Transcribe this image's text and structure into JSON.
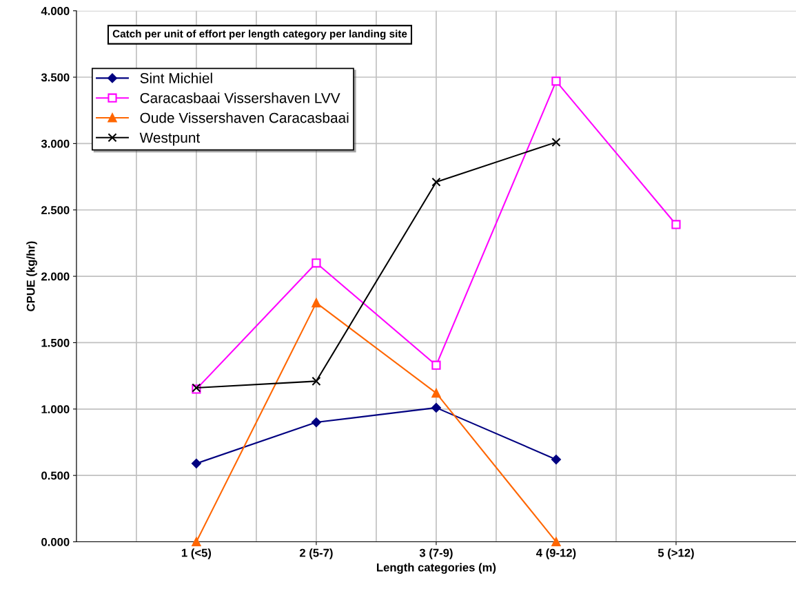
{
  "chart_data": {
    "type": "line",
    "title": "Catch per unit of effort per length category per landing site",
    "xlabel": "Length categories (m)",
    "ylabel": "CPUE (kg/hr)",
    "categories": [
      "1 (<5)",
      "2 (5-7)",
      "3 (7-9)",
      "4 (9-12)",
      "5 (>12)"
    ],
    "series": [
      {
        "name": "Sint Michiel",
        "color": "#000080",
        "marker": "diamond",
        "values": [
          0.59,
          0.9,
          1.01,
          0.62,
          null
        ]
      },
      {
        "name": "Caracasbaai Vissershaven LVV",
        "color": "#ff00ff",
        "marker": "square",
        "values": [
          1.15,
          2.1,
          1.33,
          3.47,
          2.39
        ]
      },
      {
        "name": "Oude Vissershaven Caracasbaai",
        "color": "#ff6600",
        "marker": "triangle",
        "values": [
          0.0,
          1.8,
          1.12,
          0.0,
          null
        ]
      },
      {
        "name": "Westpunt",
        "color": "#000000",
        "marker": "cross",
        "values": [
          1.16,
          1.21,
          2.71,
          3.01,
          null
        ]
      }
    ],
    "ylim": [
      0,
      4
    ],
    "yticks": [
      {
        "value": 0,
        "label": "0.000"
      },
      {
        "value": 0.5,
        "label": "0.500"
      },
      {
        "value": 1,
        "label": "1.000"
      },
      {
        "value": 1.5,
        "label": "1.500"
      },
      {
        "value": 2,
        "label": "2.000"
      },
      {
        "value": 2.5,
        "label": "2.500"
      },
      {
        "value": 3,
        "label": "3.000"
      },
      {
        "value": 3.5,
        "label": "3.500"
      },
      {
        "value": 4,
        "label": "4.000"
      }
    ],
    "grid": true,
    "legend": "top left"
  }
}
